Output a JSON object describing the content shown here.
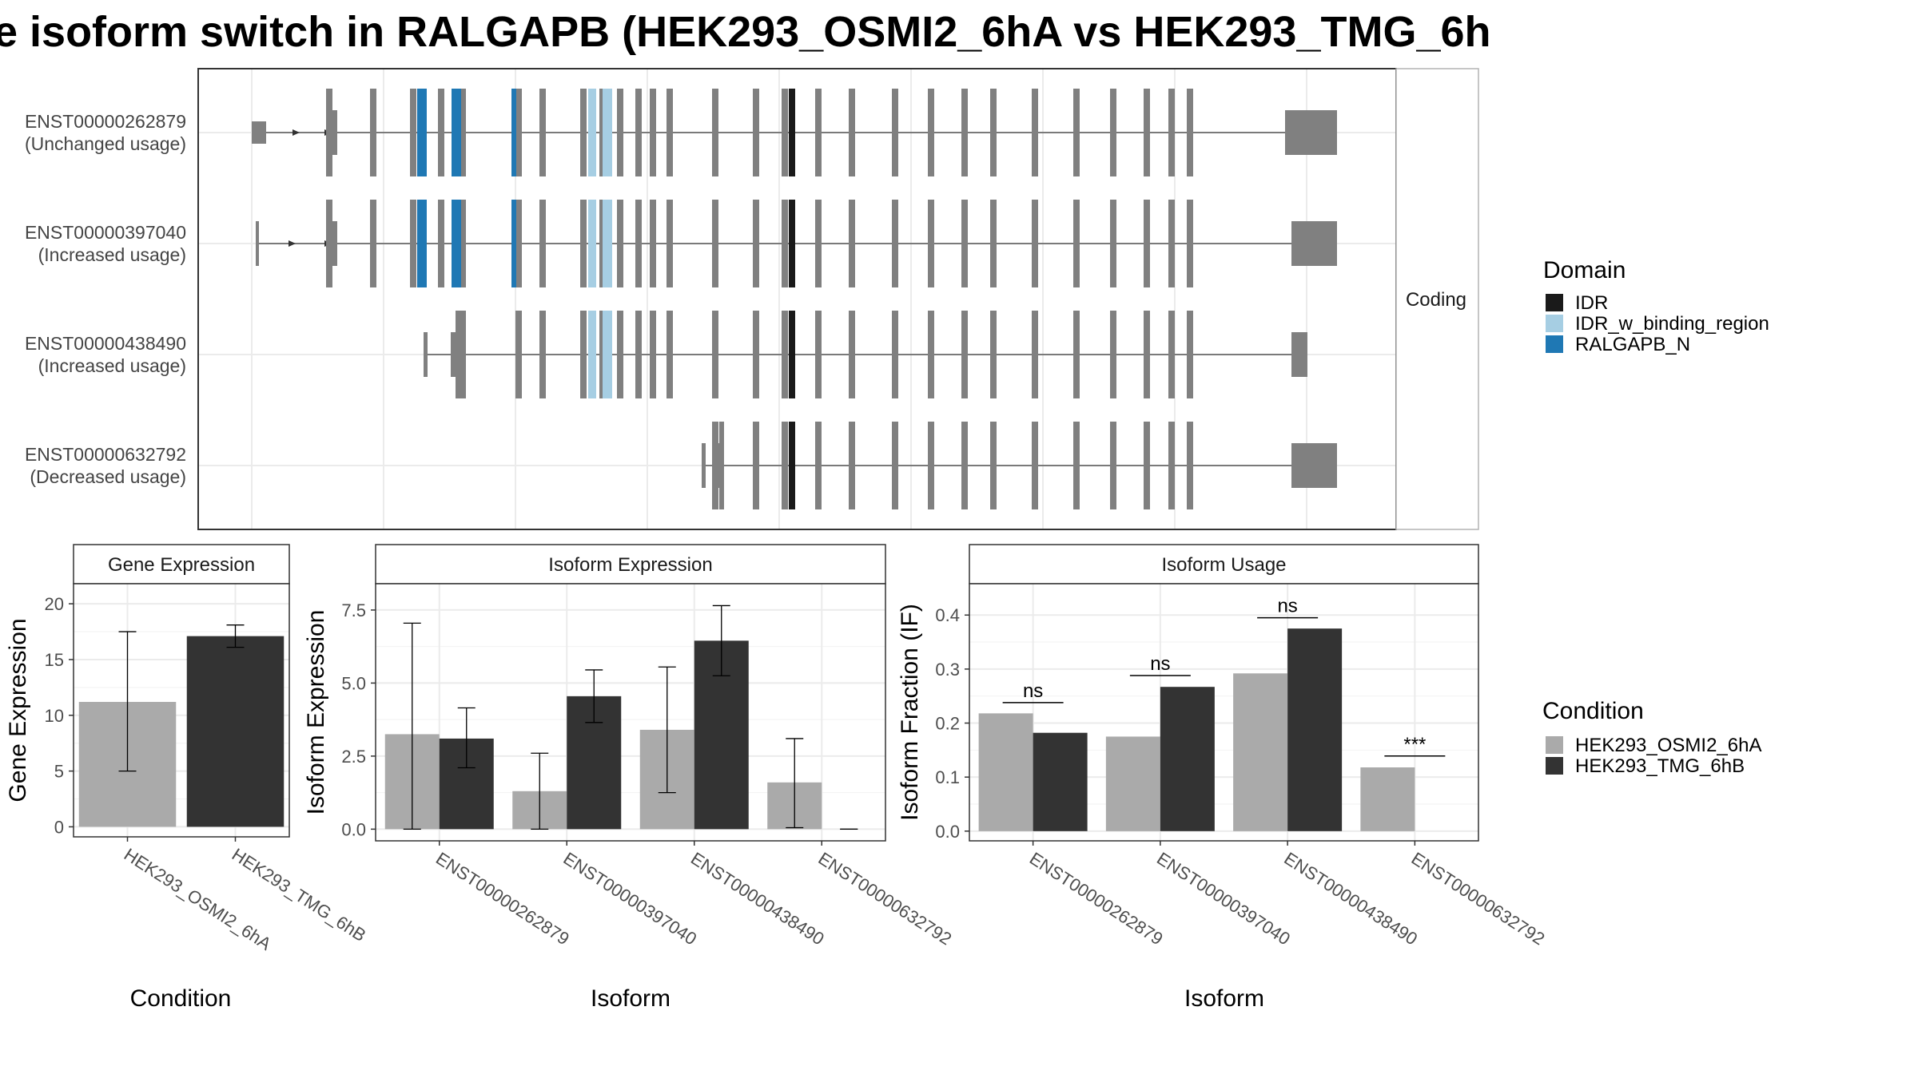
{
  "title": "e isoform switch in RALGAPB (HEK293_OSMI2_6hA vs HEK293_TMG_6h",
  "colors": {
    "exon": "#808080",
    "IDR": "#1a1a1a",
    "IDR_w_binding_region": "#a6cee3",
    "RALGAPB_N": "#1f78b4",
    "cond1": "#aaaaaa",
    "cond2": "#333333"
  },
  "transcripts": {
    "strip_label": "Coding",
    "tracks": [
      {
        "id": "ENST00000262879",
        "usage": "(Unchanged usage)"
      },
      {
        "id": "ENST00000397040",
        "usage": "(Increased usage)"
      },
      {
        "id": "ENST00000438490",
        "usage": "(Increased usage)"
      },
      {
        "id": "ENST00000632792",
        "usage": "(Decreased usage)"
      }
    ]
  },
  "legend_domain": {
    "title": "Domain",
    "items": [
      {
        "label": "IDR",
        "color": "#1a1a1a"
      },
      {
        "label": "IDR_w_binding_region",
        "color": "#a6cee3"
      },
      {
        "label": "RALGAPB_N",
        "color": "#1f78b4"
      }
    ]
  },
  "legend_condition": {
    "title": "Condition",
    "items": [
      {
        "label": "HEK293_OSMI2_6hA",
        "color": "#aaaaaa"
      },
      {
        "label": "HEK293_TMG_6hB",
        "color": "#333333"
      }
    ]
  },
  "chart_data": [
    {
      "type": "bar",
      "title": "Gene Expression",
      "xlabel": "Condition",
      "ylabel": "Gene Expression",
      "categories": [
        "HEK293_OSMI2_6hA",
        "HEK293_TMG_6hB"
      ],
      "values": [
        11.2,
        17.1
      ],
      "errors": [
        [
          5.0,
          17.5
        ],
        [
          16.1,
          18.1
        ]
      ],
      "ylim": [
        -0.9,
        21.8
      ],
      "yticks": [
        0,
        5,
        10,
        15,
        20
      ],
      "ytick_labels": [
        "0",
        "5",
        "10",
        "15",
        "20"
      ]
    },
    {
      "type": "bar",
      "title": "Isoform Expression",
      "xlabel": "Isoform",
      "ylabel": "Isoform Expression",
      "categories": [
        "ENST00000262879",
        "ENST00000397040",
        "ENST00000438490",
        "ENST00000632792"
      ],
      "series": [
        {
          "name": "HEK293_OSMI2_6hA",
          "values": [
            3.25,
            1.3,
            3.4,
            1.6
          ],
          "errors": [
            [
              0.0,
              7.05
            ],
            [
              0.0,
              2.6
            ],
            [
              1.25,
              5.55
            ],
            [
              0.05,
              3.1
            ]
          ]
        },
        {
          "name": "HEK293_TMG_6hB",
          "values": [
            3.1,
            4.55,
            6.45,
            0.0
          ],
          "errors": [
            [
              2.1,
              4.15
            ],
            [
              3.65,
              5.45
            ],
            [
              5.25,
              7.65
            ],
            [
              0.0,
              0.0
            ]
          ]
        }
      ],
      "ylim": [
        -0.4,
        8.4
      ],
      "yticks": [
        0,
        2.5,
        5,
        7.5
      ],
      "ytick_labels": [
        "0.0",
        "2.5",
        "5.0",
        "7.5"
      ]
    },
    {
      "type": "bar",
      "title": "Isoform Usage",
      "xlabel": "Isoform",
      "ylabel": "Isoform Fraction (IF)",
      "categories": [
        "ENST00000262879",
        "ENST00000397040",
        "ENST00000438490",
        "ENST00000632792"
      ],
      "series": [
        {
          "name": "HEK293_OSMI2_6hA",
          "values": [
            0.218,
            0.175,
            0.292,
            0.118
          ]
        },
        {
          "name": "HEK293_TMG_6hB",
          "values": [
            0.182,
            0.267,
            0.375,
            0.0
          ]
        }
      ],
      "significance": [
        {
          "label": "ns",
          "y": 0.238
        },
        {
          "label": "ns",
          "y": 0.288
        },
        {
          "label": "ns",
          "y": 0.395
        },
        {
          "label": "***",
          "y": 0.139
        }
      ],
      "ylim": [
        -0.018,
        0.458
      ],
      "yticks": [
        0,
        0.1,
        0.2,
        0.3,
        0.4
      ],
      "ytick_labels": [
        "0.0",
        "0.1",
        "0.2",
        "0.3",
        "0.4"
      ]
    }
  ]
}
